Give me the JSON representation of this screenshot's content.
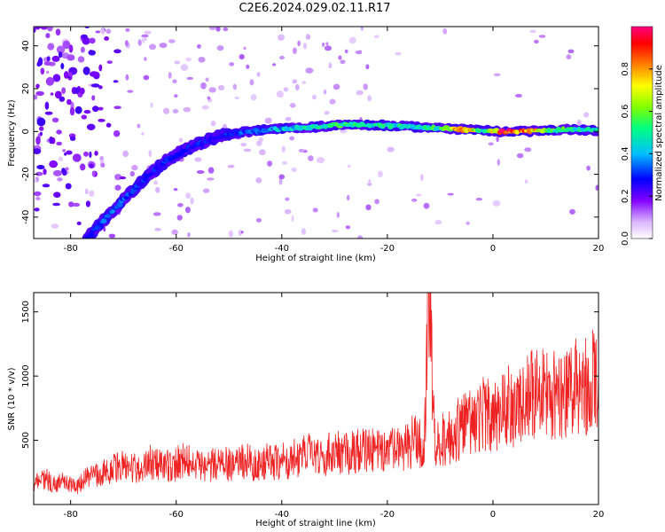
{
  "title": "C2E6.2024.029.02.11.R17",
  "chart_data": [
    {
      "type": "heatmap",
      "xlabel": "Height of straight line (km)",
      "ylabel": "Frequency (Hz)",
      "xlim": [
        -87,
        20
      ],
      "ylim": [
        -50,
        49
      ],
      "xticks": [
        -80,
        -60,
        -40,
        -20,
        0,
        20
      ],
      "yticks": [
        -40,
        -20,
        0,
        20,
        40
      ],
      "colorbar": {
        "label": "Normalized spectral amplitude",
        "range": [
          0,
          1
        ],
        "ticks": [
          0.0,
          0.2,
          0.4,
          0.6,
          0.8
        ],
        "colors": [
          "#ffffff",
          "#d9b3ff",
          "#8000ff",
          "#0000ff",
          "#00c0ff",
          "#00ff80",
          "#80ff00",
          "#ffff00",
          "#ff8000",
          "#ff0000",
          "#ff0080"
        ]
      },
      "ridge": {
        "x": [
          -77,
          -74,
          -70,
          -66,
          -62,
          -58,
          -54,
          -50,
          -46,
          -42,
          -38,
          -34,
          -30,
          -26,
          -22,
          -18,
          -14,
          -10,
          -6,
          -2,
          2,
          6,
          10,
          14,
          20
        ],
        "frequency": [
          -50,
          -42,
          -32,
          -22,
          -14,
          -8,
          -4,
          -1,
          0,
          1,
          1.5,
          2,
          3,
          3,
          3,
          2.5,
          2,
          1.5,
          1,
          0.5,
          0,
          0,
          0.5,
          1,
          0.5
        ],
        "amplitude": [
          0.3,
          0.35,
          0.35,
          0.3,
          0.3,
          0.3,
          0.3,
          0.3,
          0.35,
          0.4,
          0.45,
          0.5,
          0.55,
          0.55,
          0.5,
          0.5,
          0.5,
          0.55,
          0.95,
          0.55,
          0.95,
          0.95,
          0.6,
          0.55,
          0.5
        ]
      }
    },
    {
      "type": "line",
      "xlabel": "Height of straight line (km)",
      "ylabel": "SNR (10 * v/v)",
      "xlim": [
        -87,
        20
      ],
      "ylim": [
        0,
        1650
      ],
      "xticks": [
        -80,
        -60,
        -40,
        -20,
        0,
        20
      ],
      "yticks": [
        500,
        1000,
        1500
      ],
      "series": [
        {
          "color": "#ee2222",
          "x": [
            -87,
            -85,
            -83,
            -81,
            -79,
            -77,
            -75,
            -73,
            -71,
            -69,
            -67,
            -65,
            -63,
            -61,
            -59,
            -57,
            -55,
            -53,
            -51,
            -49,
            -47,
            -45,
            -43,
            -41,
            -39,
            -37,
            -35,
            -33,
            -31,
            -29,
            -27,
            -25,
            -23,
            -21,
            -19,
            -17,
            -15,
            -13,
            -12,
            -11,
            -9,
            -7,
            -5,
            -3,
            -1,
            1,
            3,
            5,
            7,
            9,
            11,
            13,
            15,
            17,
            19,
            20
          ],
          "y": [
            150,
            200,
            150,
            180,
            120,
            200,
            220,
            250,
            300,
            260,
            280,
            320,
            300,
            280,
            330,
            310,
            280,
            300,
            320,
            280,
            330,
            300,
            320,
            310,
            330,
            350,
            380,
            350,
            380,
            400,
            380,
            420,
            400,
            380,
            420,
            400,
            480,
            450,
            1650,
            450,
            500,
            550,
            600,
            650,
            700,
            650,
            750,
            700,
            800,
            850,
            820,
            780,
            900,
            850,
            950,
            900
          ]
        }
      ]
    }
  ]
}
